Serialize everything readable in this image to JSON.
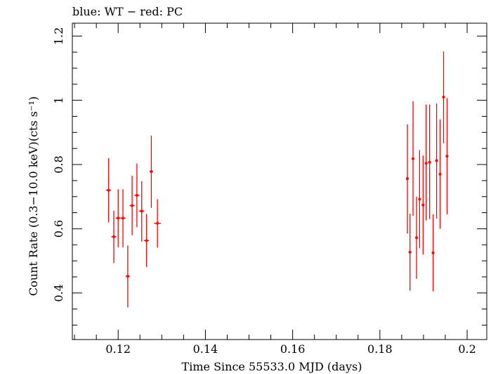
{
  "chart_data": {
    "type": "scatter",
    "title": "blue: WT − red: PC",
    "xlabel": "Time Since 55533.0 MJD (days)",
    "ylabel": "Count Rate (0.3−10.0 keV)(cts s⁻¹)",
    "xlim": [
      0.1095,
      0.2045
    ],
    "ylim": [
      0.255,
      1.24
    ],
    "x_ticks": [
      0.12,
      0.14,
      0.16,
      0.18,
      0.2
    ],
    "x_tick_labels": [
      "0.12",
      "0.14",
      "0.16",
      "0.18",
      "0.2"
    ],
    "y_ticks": [
      0.4,
      0.6,
      0.8,
      1.0,
      1.2
    ],
    "y_tick_labels": [
      "0.4",
      "0.6",
      "0.8",
      "1",
      "1.2"
    ],
    "grid": false,
    "series": [
      {
        "name": "PC",
        "color": "#ff0000",
        "points": [
          {
            "x": 0.1178,
            "y": 0.72,
            "ylo": 0.62,
            "yhi": 0.82,
            "xerr": 0.0006
          },
          {
            "x": 0.119,
            "y": 0.575,
            "ylo": 0.493,
            "yhi": 0.656,
            "xerr": 0.0006
          },
          {
            "x": 0.12,
            "y": 0.633,
            "ylo": 0.542,
            "yhi": 0.723,
            "xerr": 0.0006
          },
          {
            "x": 0.1211,
            "y": 0.633,
            "ylo": 0.542,
            "yhi": 0.723,
            "xerr": 0.0006
          },
          {
            "x": 0.1222,
            "y": 0.452,
            "ylo": 0.355,
            "yhi": 0.548,
            "xerr": 0.0005
          },
          {
            "x": 0.1232,
            "y": 0.672,
            "ylo": 0.58,
            "yhi": 0.765,
            "xerr": 0.0006
          },
          {
            "x": 0.1243,
            "y": 0.704,
            "ylo": 0.605,
            "yhi": 0.803,
            "xerr": 0.0006
          },
          {
            "x": 0.1254,
            "y": 0.655,
            "ylo": 0.56,
            "yhi": 0.748,
            "xerr": 0.0006
          },
          {
            "x": 0.1265,
            "y": 0.563,
            "ylo": 0.481,
            "yhi": 0.646,
            "xerr": 0.0006
          },
          {
            "x": 0.1276,
            "y": 0.778,
            "ylo": 0.665,
            "yhi": 0.89,
            "xerr": 0.0004
          },
          {
            "x": 0.129,
            "y": 0.617,
            "ylo": 0.541,
            "yhi": 0.692,
            "xerr": 0.0008
          },
          {
            "x": 0.1863,
            "y": 0.756,
            "ylo": 0.585,
            "yhi": 0.925,
            "xerr": 0.0003
          },
          {
            "x": 0.1869,
            "y": 0.527,
            "ylo": 0.407,
            "yhi": 0.647,
            "xerr": 0.0003
          },
          {
            "x": 0.1876,
            "y": 0.818,
            "ylo": 0.64,
            "yhi": 0.997,
            "xerr": 0.0003
          },
          {
            "x": 0.1884,
            "y": 0.572,
            "ylo": 0.444,
            "yhi": 0.7,
            "xerr": 0.0003
          },
          {
            "x": 0.1891,
            "y": 0.692,
            "ylo": 0.54,
            "yhi": 0.845,
            "xerr": 0.0003
          },
          {
            "x": 0.1899,
            "y": 0.674,
            "ylo": 0.52,
            "yhi": 0.828,
            "xerr": 0.0003
          },
          {
            "x": 0.1906,
            "y": 0.804,
            "ylo": 0.626,
            "yhi": 0.987,
            "xerr": 0.0003
          },
          {
            "x": 0.1914,
            "y": 0.807,
            "ylo": 0.63,
            "yhi": 0.987,
            "xerr": 0.0003
          },
          {
            "x": 0.1922,
            "y": 0.525,
            "ylo": 0.405,
            "yhi": 0.645,
            "xerr": 0.0003
          },
          {
            "x": 0.193,
            "y": 0.812,
            "ylo": 0.632,
            "yhi": 0.99,
            "xerr": 0.0003
          },
          {
            "x": 0.1938,
            "y": 0.77,
            "ylo": 0.6,
            "yhi": 0.94,
            "xerr": 0.0003
          },
          {
            "x": 0.1946,
            "y": 1.01,
            "ylo": 0.866,
            "yhi": 1.152,
            "xerr": 0.0003
          },
          {
            "x": 0.1954,
            "y": 0.826,
            "ylo": 0.645,
            "yhi": 1.007,
            "xerr": 0.0003
          }
        ]
      }
    ]
  }
}
